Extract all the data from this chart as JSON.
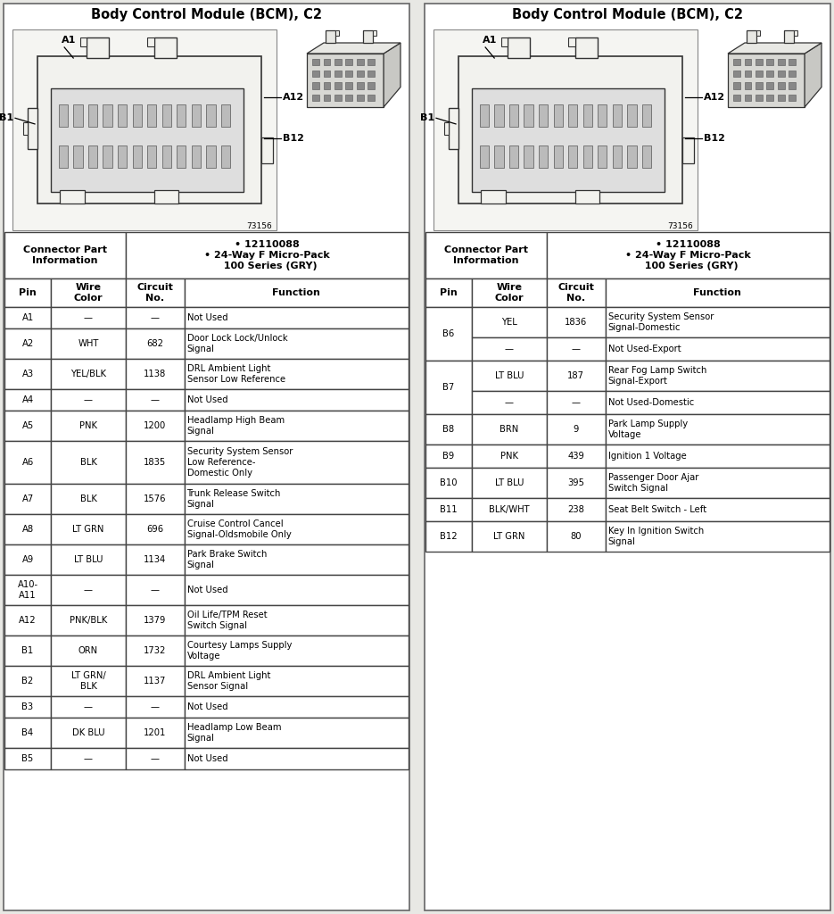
{
  "title": "Body Control Module (BCM), C2",
  "connector_info_label": "Connector Part\nInformation",
  "connector_info_value": "• 12110088\n• 24-Way F Micro-Pack\n  100 Series (GRY)",
  "left_rows": [
    {
      "pin": "A1",
      "wire": "—",
      "circuit": "—",
      "func": "Not Used",
      "rowspan": 1
    },
    {
      "pin": "A2",
      "wire": "WHT",
      "circuit": "682",
      "func": "Door Lock Lock/Unlock\nSignal",
      "rowspan": 1
    },
    {
      "pin": "A3",
      "wire": "YEL/BLK",
      "circuit": "1138",
      "func": "DRL Ambient Light\nSensor Low Reference",
      "rowspan": 1
    },
    {
      "pin": "A4",
      "wire": "—",
      "circuit": "—",
      "func": "Not Used",
      "rowspan": 1
    },
    {
      "pin": "A5",
      "wire": "PNK",
      "circuit": "1200",
      "func": "Headlamp High Beam\nSignal",
      "rowspan": 1
    },
    {
      "pin": "A6",
      "wire": "BLK",
      "circuit": "1835",
      "func": "Security System Sensor\nLow Reference-\nDomestic Only",
      "rowspan": 1
    },
    {
      "pin": "A7",
      "wire": "BLK",
      "circuit": "1576",
      "func": "Trunk Release Switch\nSignal",
      "rowspan": 1
    },
    {
      "pin": "A8",
      "wire": "LT GRN",
      "circuit": "696",
      "func": "Cruise Control Cancel\nSignal-Oldsmobile Only",
      "rowspan": 1
    },
    {
      "pin": "A9",
      "wire": "LT BLU",
      "circuit": "1134",
      "func": "Park Brake Switch\nSignal",
      "rowspan": 1
    },
    {
      "pin": "A10-\nA11",
      "wire": "—",
      "circuit": "—",
      "func": "Not Used",
      "rowspan": 1
    },
    {
      "pin": "A12",
      "wire": "PNK/BLK",
      "circuit": "1379",
      "func": "Oil Life/TPM Reset\nSwitch Signal",
      "rowspan": 1
    },
    {
      "pin": "B1",
      "wire": "ORN",
      "circuit": "1732",
      "func": "Courtesy Lamps Supply\nVoltage",
      "rowspan": 1
    },
    {
      "pin": "B2",
      "wire": "LT GRN/\nBLK",
      "circuit": "1137",
      "func": "DRL Ambient Light\nSensor Signal",
      "rowspan": 1
    },
    {
      "pin": "B3",
      "wire": "—",
      "circuit": "—",
      "func": "Not Used",
      "rowspan": 1
    },
    {
      "pin": "B4",
      "wire": "DK BLU",
      "circuit": "1201",
      "func": "Headlamp Low Beam\nSignal",
      "rowspan": 1
    },
    {
      "pin": "B5",
      "wire": "—",
      "circuit": "—",
      "func": "Not Used",
      "rowspan": 1
    }
  ],
  "right_rows": [
    {
      "pin": "B6",
      "sub": [
        {
          "wire": "YEL",
          "circuit": "1836",
          "func": "Security System Sensor\nSignal-Domestic"
        },
        {
          "wire": "—",
          "circuit": "—",
          "func": "Not Used-Export"
        }
      ]
    },
    {
      "pin": "B7",
      "sub": [
        {
          "wire": "LT BLU",
          "circuit": "187",
          "func": "Rear Fog Lamp Switch\nSignal-Export"
        },
        {
          "wire": "—",
          "circuit": "—",
          "func": "Not Used-Domestic"
        }
      ]
    },
    {
      "pin": "B8",
      "wire": "BRN",
      "circuit": "9",
      "func": "Park Lamp Supply\nVoltage"
    },
    {
      "pin": "B9",
      "wire": "PNK",
      "circuit": "439",
      "func": "Ignition 1 Voltage"
    },
    {
      "pin": "B10",
      "wire": "LT BLU",
      "circuit": "395",
      "func": "Passenger Door Ajar\nSwitch Signal"
    },
    {
      "pin": "B11",
      "wire": "BLK/WHT",
      "circuit": "238",
      "func": "Seat Belt Switch - Left"
    },
    {
      "pin": "B12",
      "wire": "LT GRN",
      "circuit": "80",
      "func": "Key In Ignition Switch\nSignal"
    }
  ],
  "bg_color": "#e8e8e4",
  "panel_bg": "#ffffff",
  "border_color": "#444444",
  "text_color": "#000000",
  "fontsize_title": 10.5,
  "fontsize_header": 7.5,
  "fontsize_cell": 7.2
}
